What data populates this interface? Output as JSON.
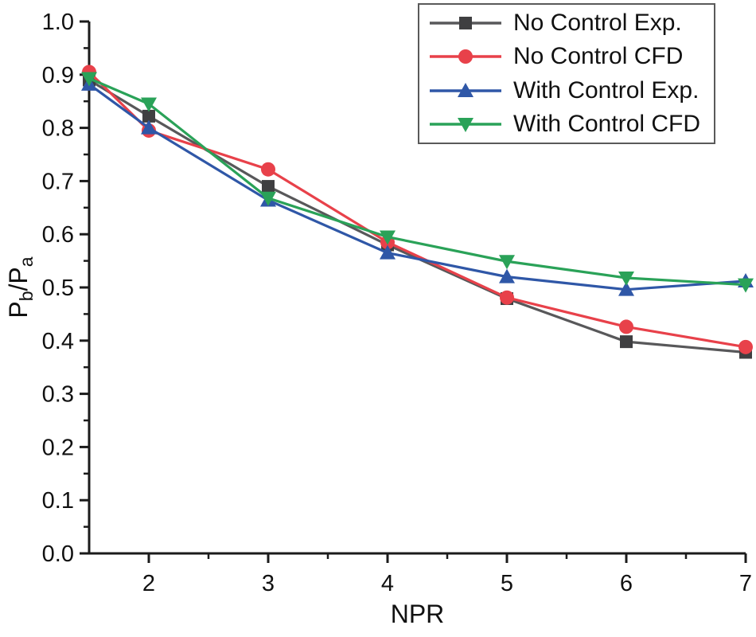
{
  "figure": {
    "background": "#ffffff",
    "axis_color": "#1b1b1b",
    "legend_border_color": "#5a5a5a"
  },
  "chart_data": {
    "type": "line",
    "title": "",
    "xlabel": "NPR",
    "ylabel": "Pb/Pa",
    "ylabel_parts": {
      "base1": "P",
      "sub1": "b",
      "divider": "/",
      "base2": "P",
      "sub2": "a"
    },
    "xlim": [
      1.5,
      7
    ],
    "ylim": [
      0.0,
      1.0
    ],
    "grid": false,
    "legend_position": "top-right",
    "x_major_ticks": [
      2,
      3,
      4,
      5,
      6,
      7
    ],
    "x_minor_ticks": [
      2.5,
      3.5,
      4.5,
      5.5,
      6.5
    ],
    "x_tick_labels": [
      "2",
      "3",
      "4",
      "5",
      "6",
      "7"
    ],
    "y_major_ticks": [
      0.0,
      0.1,
      0.2,
      0.3,
      0.4,
      0.5,
      0.6,
      0.7,
      0.8,
      0.9,
      1.0
    ],
    "y_minor_ticks": [
      0.05,
      0.15,
      0.25,
      0.35,
      0.45,
      0.55,
      0.65,
      0.75,
      0.85,
      0.95
    ],
    "y_tick_labels": [
      "0.0",
      "0.1",
      "0.2",
      "0.3",
      "0.4",
      "0.5",
      "0.6",
      "0.7",
      "0.8",
      "0.9",
      "1.0"
    ],
    "x": [
      1.5,
      2,
      3,
      4,
      5,
      6,
      7
    ],
    "series": [
      {
        "name": "No Control Exp.",
        "marker": "square",
        "line_color": "#58585a",
        "marker_color": "#3f3f41",
        "values": [
          0.89,
          0.822,
          0.69,
          0.58,
          0.479,
          0.398,
          0.378
        ]
      },
      {
        "name": "No Control CFD",
        "marker": "circle",
        "line_color": "#e8414a",
        "marker_color": "#e8414a",
        "values": [
          0.905,
          0.795,
          0.722,
          0.585,
          0.481,
          0.426,
          0.388
        ]
      },
      {
        "name": "With Control Exp.",
        "marker": "triangle-up",
        "line_color": "#2f57a7",
        "marker_color": "#2f57a7",
        "values": [
          0.882,
          0.8,
          0.664,
          0.565,
          0.52,
          0.496,
          0.512
        ]
      },
      {
        "name": "With Control CFD",
        "marker": "triangle-down",
        "line_color": "#2aa258",
        "marker_color": "#2aa258",
        "values": [
          0.893,
          0.845,
          0.668,
          0.595,
          0.549,
          0.518,
          0.505
        ]
      }
    ]
  }
}
